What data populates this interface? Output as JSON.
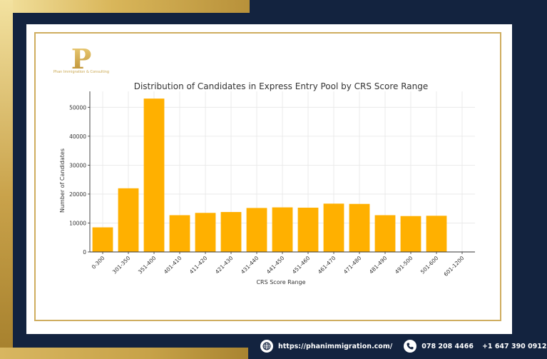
{
  "brand": {
    "logo_letter": "P",
    "logo_caption": "Phan Immigration & Consulting"
  },
  "footer": {
    "website": "https://phanimmigration.com/",
    "phone1": "078 208 4466",
    "phone2": "+1 647 390 0912"
  },
  "colors": {
    "bar": "#FFB000",
    "gold": "#CFAD5F",
    "navy": "#13233F"
  },
  "chart_data": {
    "type": "bar",
    "title": "Distribution of Candidates in Express Entry Pool by CRS Score Range",
    "xlabel": "CRS Score Range",
    "ylabel": "Number of Candidates",
    "categories": [
      "0-300",
      "301-350",
      "351-400",
      "401-410",
      "411-420",
      "421-430",
      "431-440",
      "441-450",
      "451-460",
      "461-470",
      "471-480",
      "481-490",
      "491-500",
      "501-600",
      "601-1200"
    ],
    "values": [
      8500,
      22000,
      53000,
      12700,
      13500,
      13800,
      15200,
      15400,
      15300,
      16700,
      16600,
      12700,
      12400,
      12500,
      0
    ],
    "yticks": [
      0,
      10000,
      20000,
      30000,
      40000,
      50000
    ],
    "ylim": [
      0,
      55500
    ],
    "grid": true
  }
}
